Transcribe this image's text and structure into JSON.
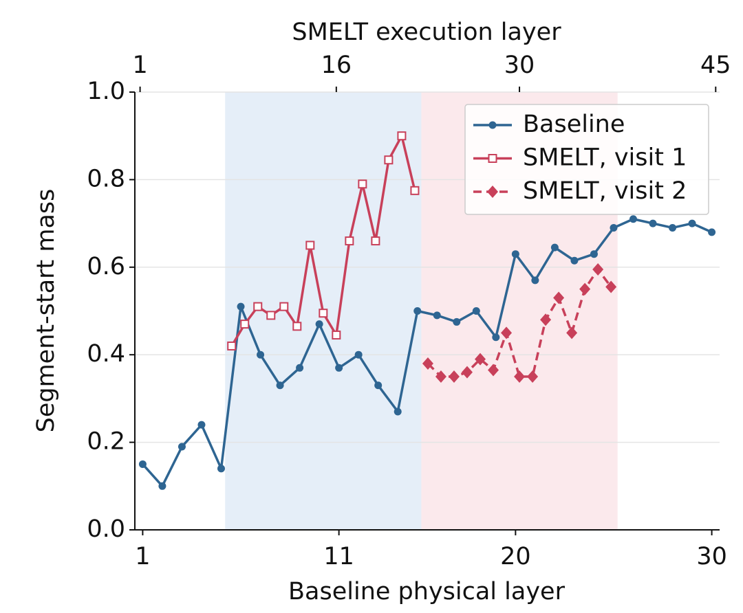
{
  "chart_data": {
    "type": "line",
    "xlabel": "Baseline physical layer",
    "x2label": "SMELT execution layer",
    "ylabel": "Segment-start mass",
    "xlim": [
      0.6,
      30.4
    ],
    "xticks": [
      1,
      11,
      20,
      30
    ],
    "x2lim": [
      0.6,
      45.3
    ],
    "x2ticks": [
      1,
      16,
      30,
      45
    ],
    "ylim": [
      0,
      1
    ],
    "yticks": [
      {
        "value": 0,
        "label": "0.0"
      },
      0.2,
      0.4,
      0.6,
      0.8,
      {
        "value": 1,
        "label": "1.0"
      }
    ],
    "grid": true,
    "legend": "upper right",
    "spans": [
      {
        "axis": "x2",
        "range": [
          7.5,
          22.5
        ],
        "color": "#e5eef8"
      },
      {
        "axis": "x2",
        "range": [
          22.5,
          37.5
        ],
        "color": "#fbe9ec"
      }
    ],
    "series": [
      {
        "name": "Baseline",
        "color": "#2e6592",
        "marker": "circle",
        "dash": false,
        "x": [
          1,
          2,
          3,
          4,
          5,
          6,
          7,
          8,
          9,
          10,
          11,
          12,
          13,
          14,
          15,
          16,
          17,
          18,
          19,
          20,
          21,
          22,
          23,
          24,
          25,
          26,
          27,
          28,
          29,
          30
        ],
        "values": [
          0.15,
          0.1,
          0.19,
          0.24,
          0.14,
          0.51,
          0.4,
          0.33,
          0.37,
          0.47,
          0.37,
          0.4,
          0.33,
          0.27,
          0.5,
          0.49,
          0.475,
          0.5,
          0.44,
          0.63,
          0.57,
          0.645,
          0.615,
          0.63,
          0.69,
          0.71,
          0.7,
          0.69,
          0.7,
          0.68
        ]
      },
      {
        "name": "SMELT, visit 1",
        "color": "#c8405a",
        "marker": "open-square",
        "dash": false,
        "axis": "x2",
        "x": [
          8,
          9,
          10,
          11,
          12,
          13,
          14,
          15,
          16,
          17,
          18,
          19,
          20,
          21,
          22
        ],
        "values": [
          0.42,
          0.47,
          0.51,
          0.49,
          0.51,
          0.465,
          0.65,
          0.495,
          0.445,
          0.66,
          0.79,
          0.66,
          0.845,
          0.9,
          0.775
        ]
      },
      {
        "name": "SMELT, visit 2",
        "color": "#c8405a",
        "marker": "diamond",
        "dash": true,
        "axis": "x2",
        "x": [
          23,
          24,
          25,
          26,
          27,
          28,
          29,
          30,
          31,
          32,
          33,
          34,
          35,
          36,
          37
        ],
        "values": [
          0.38,
          0.35,
          0.35,
          0.36,
          0.39,
          0.365,
          0.45,
          0.35,
          0.35,
          0.48,
          0.53,
          0.45,
          0.55,
          0.595,
          0.555
        ]
      }
    ]
  }
}
